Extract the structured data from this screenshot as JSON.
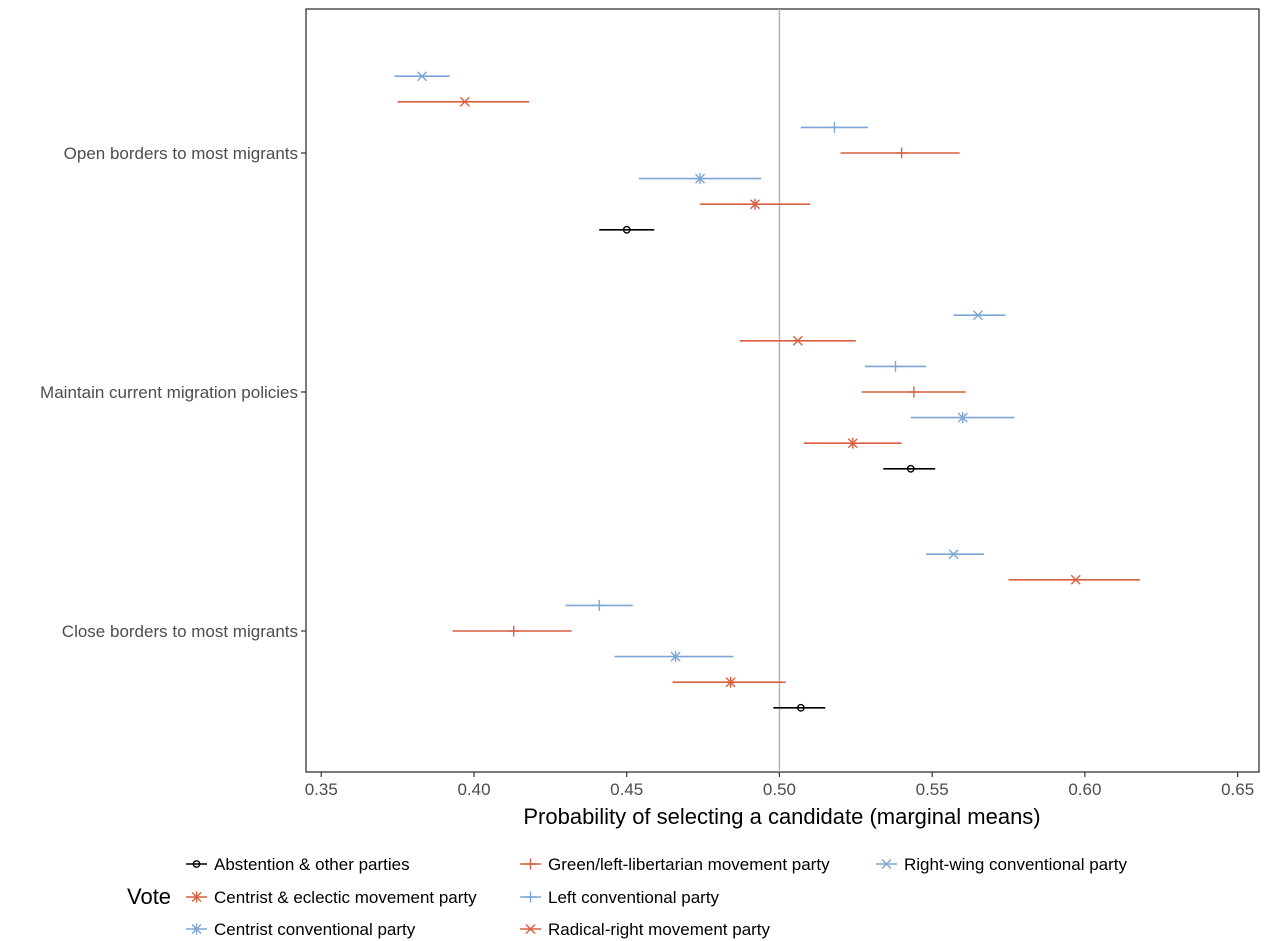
{
  "chart_data": {
    "type": "scatter",
    "xlabel": "Probability of selecting a candidate (marginal means)",
    "xlim": [
      0.345,
      0.657
    ],
    "xticks": [
      0.35,
      0.4,
      0.45,
      0.5,
      0.55,
      0.6,
      0.65
    ],
    "xtick_labels": [
      "0.35",
      "0.40",
      "0.45",
      "0.50",
      "0.55",
      "0.60",
      "0.65"
    ],
    "reference_line": 0.5,
    "grid": false,
    "categories": [
      "Open borders to most migrants",
      "Maintain current migration policies",
      "Close borders to most migrants"
    ],
    "legend": {
      "title": "Vote",
      "placement": "bottom",
      "entries": [
        {
          "name": "Abstention & other parties",
          "color": "#000000",
          "shape": "circle"
        },
        {
          "name": "Centrist & eclectic movement party",
          "color": "#d95f41",
          "shape": "asterisk"
        },
        {
          "name": "Centrist conventional party",
          "color": "#7ba6d6",
          "shape": "asterisk"
        },
        {
          "name": "Green/left-libertarian movement party",
          "color": "#d95f41",
          "shape": "plus"
        },
        {
          "name": "Left conventional party",
          "color": "#7ba6d6",
          "shape": "plus"
        },
        {
          "name": "Radical-right movement party",
          "color": "#d95f41",
          "shape": "cross"
        },
        {
          "name": "Right-wing conventional party",
          "color": "#7ba6d6",
          "shape": "cross"
        }
      ]
    },
    "series": [
      {
        "name": "Right-wing conventional party",
        "color": "#7ba6d6",
        "shape": "cross",
        "offset_rank": 0,
        "values": [
          0.383,
          0.565,
          0.557
        ],
        "lower": [
          0.374,
          0.557,
          0.548
        ],
        "upper": [
          0.392,
          0.574,
          0.567
        ]
      },
      {
        "name": "Radical-right movement party",
        "color": "#d95f41",
        "shape": "cross",
        "offset_rank": 1,
        "values": [
          0.397,
          0.506,
          0.597
        ],
        "lower": [
          0.375,
          0.487,
          0.575
        ],
        "upper": [
          0.418,
          0.525,
          0.618
        ]
      },
      {
        "name": "Left conventional party",
        "color": "#7ba6d6",
        "shape": "plus",
        "offset_rank": 2,
        "values": [
          0.518,
          0.538,
          0.441
        ],
        "lower": [
          0.507,
          0.528,
          0.43
        ],
        "upper": [
          0.529,
          0.548,
          0.452
        ]
      },
      {
        "name": "Green/left-libertarian movement party",
        "color": "#d95f41",
        "shape": "plus",
        "offset_rank": 3,
        "values": [
          0.54,
          0.544,
          0.413
        ],
        "lower": [
          0.52,
          0.527,
          0.393
        ],
        "upper": [
          0.559,
          0.561,
          0.432
        ]
      },
      {
        "name": "Centrist conventional party",
        "color": "#7ba6d6",
        "shape": "asterisk",
        "offset_rank": 4,
        "values": [
          0.474,
          0.56,
          0.466
        ],
        "lower": [
          0.454,
          0.543,
          0.446
        ],
        "upper": [
          0.494,
          0.577,
          0.485
        ]
      },
      {
        "name": "Centrist & eclectic movement party",
        "color": "#d95f41",
        "shape": "asterisk",
        "offset_rank": 5,
        "values": [
          0.492,
          0.524,
          0.484
        ],
        "lower": [
          0.474,
          0.508,
          0.465
        ],
        "upper": [
          0.51,
          0.54,
          0.502
        ]
      },
      {
        "name": "Abstention & other parties",
        "color": "#000000",
        "shape": "circle",
        "offset_rank": 6,
        "values": [
          0.45,
          0.543,
          0.507
        ],
        "lower": [
          0.441,
          0.534,
          0.498
        ],
        "upper": [
          0.459,
          0.551,
          0.515
        ]
      }
    ]
  }
}
